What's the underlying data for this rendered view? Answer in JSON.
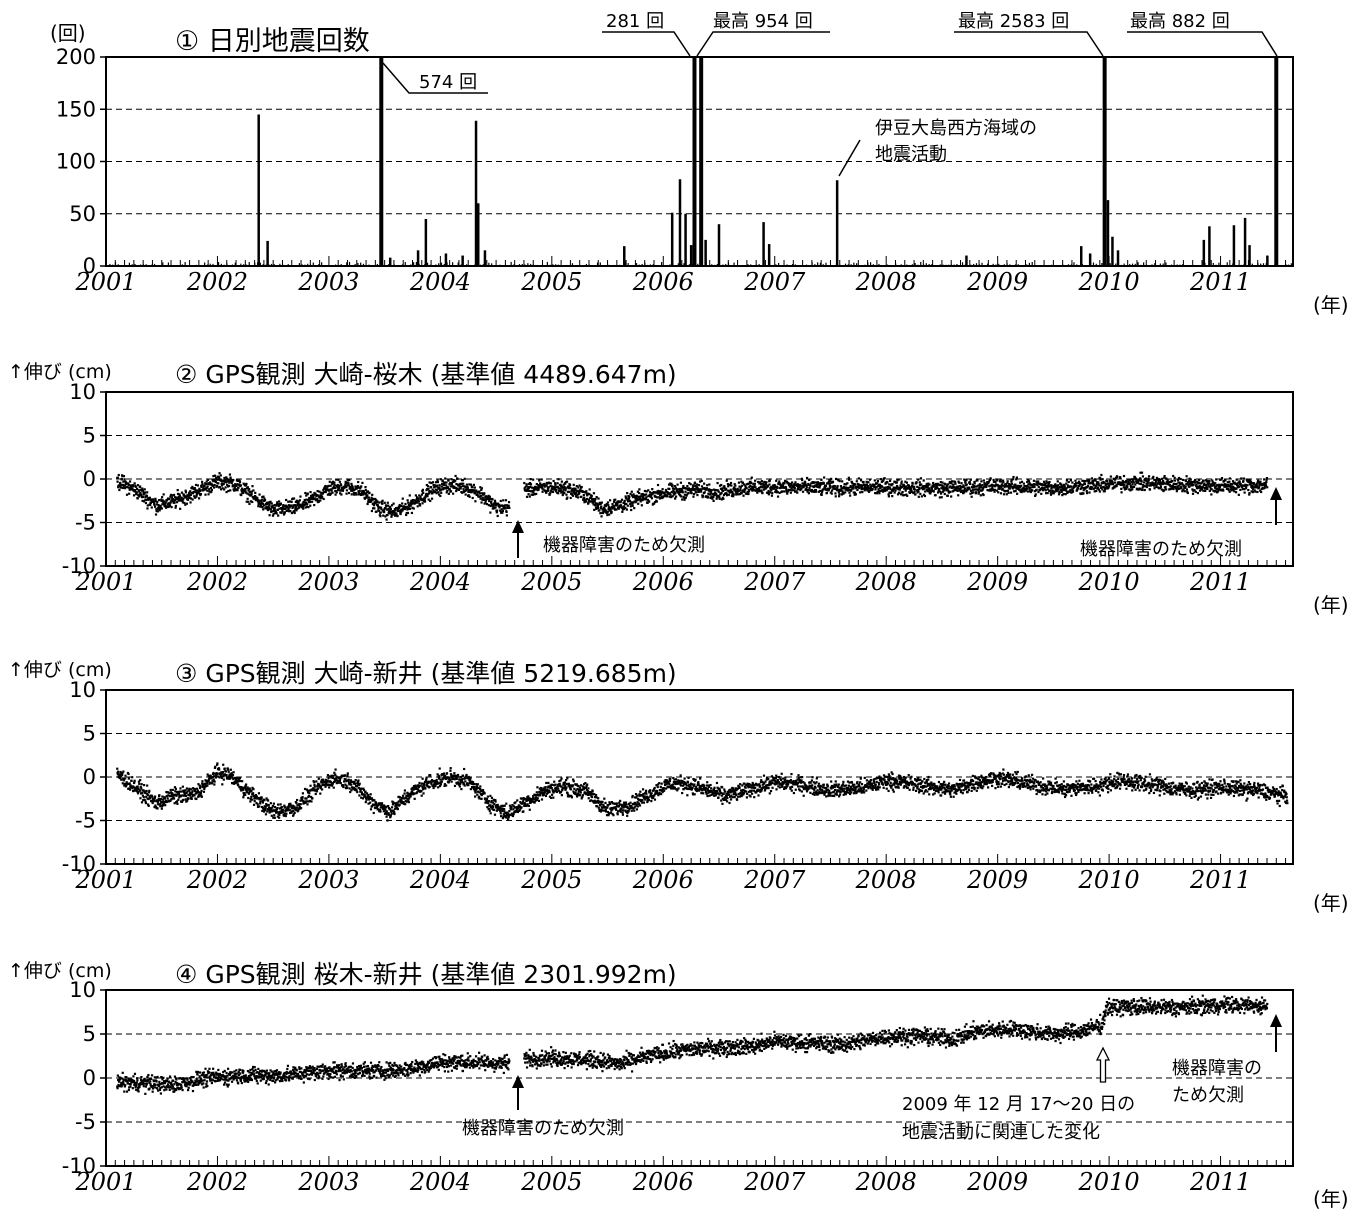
{
  "figure": {
    "year_unit_label": "(年)",
    "years": [
      "2001",
      "2002",
      "2003",
      "2004",
      "2005",
      "2006",
      "2007",
      "2008",
      "2009",
      "2010",
      "2011"
    ],
    "bar_color": "#000000",
    "grid_color": "#000000"
  },
  "chart_data": [
    {
      "type": "bar",
      "title": "① 日別地震回数",
      "ylabel": "(回)",
      "xlabel": "(年)",
      "ylim": [
        0,
        200
      ],
      "yticks": [
        0,
        50,
        100,
        150,
        200
      ],
      "grid": "dashed horizontal",
      "x_range_years": [
        2001.0,
        2011.65
      ],
      "spikes": [
        {
          "x": 2002.37,
          "y": 145
        },
        {
          "x": 2002.45,
          "y": 24
        },
        {
          "x": 2003.47,
          "y": 574
        },
        {
          "x": 2003.55,
          "y": 8
        },
        {
          "x": 2003.8,
          "y": 15
        },
        {
          "x": 2003.87,
          "y": 45
        },
        {
          "x": 2004.05,
          "y": 12
        },
        {
          "x": 2004.2,
          "y": 10
        },
        {
          "x": 2004.32,
          "y": 139
        },
        {
          "x": 2004.34,
          "y": 60
        },
        {
          "x": 2004.4,
          "y": 15
        },
        {
          "x": 2005.65,
          "y": 19
        },
        {
          "x": 2006.08,
          "y": 51
        },
        {
          "x": 2006.15,
          "y": 83
        },
        {
          "x": 2006.2,
          "y": 50
        },
        {
          "x": 2006.25,
          "y": 20
        },
        {
          "x": 2006.28,
          "y": 281
        },
        {
          "x": 2006.34,
          "y": 954
        },
        {
          "x": 2006.38,
          "y": 25
        },
        {
          "x": 2006.5,
          "y": 40
        },
        {
          "x": 2006.9,
          "y": 42
        },
        {
          "x": 2006.95,
          "y": 21
        },
        {
          "x": 2007.56,
          "y": 82
        },
        {
          "x": 2008.72,
          "y": 10
        },
        {
          "x": 2009.75,
          "y": 19
        },
        {
          "x": 2009.83,
          "y": 12
        },
        {
          "x": 2009.96,
          "y": 2583
        },
        {
          "x": 2009.99,
          "y": 63
        },
        {
          "x": 2010.03,
          "y": 28
        },
        {
          "x": 2010.08,
          "y": 15
        },
        {
          "x": 2010.85,
          "y": 25
        },
        {
          "x": 2010.9,
          "y": 38
        },
        {
          "x": 2011.12,
          "y": 39
        },
        {
          "x": 2011.22,
          "y": 46
        },
        {
          "x": 2011.26,
          "y": 20
        },
        {
          "x": 2011.42,
          "y": 10
        },
        {
          "x": 2011.5,
          "y": 882
        }
      ],
      "annotations": [
        {
          "text": "574 回",
          "x": 2003.47
        },
        {
          "text": "281 回",
          "x": 2006.28
        },
        {
          "text": "最高 954 回",
          "x": 2006.34
        },
        {
          "text": "最高 2583 回",
          "x": 2009.96
        },
        {
          "text": "最高 882 回",
          "x": 2011.5
        },
        {
          "text": "伊豆大島西方海域の",
          "x": 2007.56
        },
        {
          "text": "地震活動",
          "x": 2007.56
        }
      ]
    },
    {
      "type": "scatter",
      "title": "② GPS観測 大崎-桜木 (基準値 4489.647m)",
      "ylabel": "↑伸び (cm)",
      "xlabel": "(年)",
      "ylim": [
        -10,
        10
      ],
      "yticks": [
        -10,
        -5,
        0,
        5,
        10
      ],
      "grid": "dashed horizontal",
      "x_range_years": [
        2001.0,
        2011.65
      ],
      "gaps": [
        [
          2004.62,
          2004.75
        ],
        [
          2011.42,
          2011.65
        ]
      ],
      "trend": [
        [
          2001.1,
          -0.2
        ],
        [
          2001.3,
          -1.5
        ],
        [
          2001.45,
          -3.0
        ],
        [
          2001.6,
          -2.6
        ],
        [
          2001.8,
          -1.5
        ],
        [
          2002.0,
          -0.3
        ],
        [
          2002.15,
          -0.5
        ],
        [
          2002.35,
          -2.3
        ],
        [
          2002.5,
          -3.6
        ],
        [
          2002.7,
          -3.2
        ],
        [
          2002.85,
          -2.4
        ],
        [
          2003.0,
          -1.1
        ],
        [
          2003.15,
          -0.8
        ],
        [
          2003.3,
          -1.4
        ],
        [
          2003.45,
          -3.4
        ],
        [
          2003.6,
          -3.8
        ],
        [
          2003.75,
          -2.8
        ],
        [
          2003.9,
          -1.4
        ],
        [
          2004.05,
          -0.7
        ],
        [
          2004.2,
          -0.8
        ],
        [
          2004.35,
          -1.6
        ],
        [
          2004.5,
          -3.3
        ],
        [
          2004.62,
          -3.2
        ],
        [
          2004.75,
          -1.2
        ],
        [
          2004.9,
          -1.0
        ],
        [
          2005.1,
          -1.0
        ],
        [
          2005.3,
          -1.8
        ],
        [
          2005.45,
          -3.4
        ],
        [
          2005.6,
          -3.0
        ],
        [
          2005.8,
          -2.2
        ],
        [
          2006.0,
          -1.6
        ],
        [
          2006.3,
          -1.2
        ],
        [
          2006.5,
          -1.5
        ],
        [
          2006.7,
          -1.0
        ],
        [
          2007.0,
          -0.9
        ],
        [
          2007.5,
          -1.0
        ],
        [
          2008.0,
          -0.9
        ],
        [
          2008.5,
          -1.1
        ],
        [
          2009.0,
          -0.8
        ],
        [
          2009.5,
          -1.0
        ],
        [
          2009.9,
          -0.7
        ],
        [
          2010.2,
          -0.4
        ],
        [
          2010.6,
          -0.6
        ],
        [
          2011.0,
          -0.8
        ],
        [
          2011.42,
          -0.7
        ]
      ],
      "annotations": [
        {
          "text": "機器障害のため欠測",
          "x": 2004.68
        },
        {
          "text": "機器障害のため欠測",
          "x": 2011.55
        }
      ]
    },
    {
      "type": "scatter",
      "title": "③ GPS観測 大崎-新井 (基準値 5219.685m)",
      "ylabel": "↑伸び (cm)",
      "xlabel": "(年)",
      "ylim": [
        -10,
        10
      ],
      "yticks": [
        -10,
        -5,
        0,
        5,
        10
      ],
      "grid": "dashed horizontal",
      "x_range_years": [
        2001.0,
        2011.65
      ],
      "gaps": [],
      "trend": [
        [
          2001.1,
          0.4
        ],
        [
          2001.3,
          -1.5
        ],
        [
          2001.45,
          -3.0
        ],
        [
          2001.6,
          -2.2
        ],
        [
          2001.8,
          -2.0
        ],
        [
          2002.0,
          0.5
        ],
        [
          2002.1,
          0.3
        ],
        [
          2002.3,
          -2.0
        ],
        [
          2002.5,
          -4.0
        ],
        [
          2002.7,
          -3.5
        ],
        [
          2002.9,
          -1.2
        ],
        [
          2003.05,
          -0.1
        ],
        [
          2003.2,
          -0.6
        ],
        [
          2003.4,
          -3.0
        ],
        [
          2003.55,
          -4.0
        ],
        [
          2003.7,
          -2.2
        ],
        [
          2003.9,
          -0.6
        ],
        [
          2004.1,
          0.0
        ],
        [
          2004.25,
          -0.5
        ],
        [
          2004.45,
          -3.0
        ],
        [
          2004.6,
          -4.2
        ],
        [
          2004.75,
          -3.0
        ],
        [
          2004.95,
          -1.5
        ],
        [
          2005.1,
          -1.1
        ],
        [
          2005.3,
          -1.6
        ],
        [
          2005.5,
          -3.8
        ],
        [
          2005.7,
          -3.2
        ],
        [
          2005.9,
          -1.8
        ],
        [
          2006.05,
          -0.8
        ],
        [
          2006.2,
          -0.8
        ],
        [
          2006.4,
          -1.5
        ],
        [
          2006.55,
          -2.2
        ],
        [
          2006.8,
          -1.3
        ],
        [
          2007.0,
          -0.6
        ],
        [
          2007.2,
          -0.8
        ],
        [
          2007.5,
          -1.5
        ],
        [
          2007.8,
          -1.2
        ],
        [
          2008.0,
          -0.4
        ],
        [
          2008.3,
          -0.9
        ],
        [
          2008.6,
          -1.5
        ],
        [
          2008.8,
          -0.6
        ],
        [
          2009.0,
          -0.1
        ],
        [
          2009.3,
          -0.8
        ],
        [
          2009.6,
          -1.4
        ],
        [
          2009.9,
          -1.0
        ],
        [
          2010.1,
          -0.4
        ],
        [
          2010.4,
          -0.9
        ],
        [
          2010.7,
          -1.5
        ],
        [
          2011.0,
          -1.2
        ],
        [
          2011.3,
          -1.5
        ],
        [
          2011.6,
          -2.2
        ]
      ],
      "annotations": []
    },
    {
      "type": "scatter",
      "title": "④ GPS観測 桜木-新井 (基準値 2301.992m)",
      "ylabel": "↑伸び (cm)",
      "xlabel": "(年)",
      "ylim": [
        -10,
        10
      ],
      "yticks": [
        -10,
        -5,
        0,
        5,
        10
      ],
      "grid": "dashed horizontal",
      "x_range_years": [
        2001.0,
        2011.65
      ],
      "gaps": [
        [
          2004.62,
          2004.75
        ],
        [
          2011.42,
          2011.65
        ]
      ],
      "trend": [
        [
          2001.1,
          -0.5
        ],
        [
          2001.4,
          -0.6
        ],
        [
          2001.6,
          -0.8
        ],
        [
          2001.9,
          0.0
        ],
        [
          2002.2,
          0.3
        ],
        [
          2002.6,
          0.3
        ],
        [
          2003.0,
          0.9
        ],
        [
          2003.4,
          0.8
        ],
        [
          2003.7,
          1.0
        ],
        [
          2004.0,
          1.8
        ],
        [
          2004.3,
          1.8
        ],
        [
          2004.62,
          1.6
        ],
        [
          2004.75,
          2.2
        ],
        [
          2005.0,
          2.3
        ],
        [
          2005.4,
          2.0
        ],
        [
          2005.6,
          1.6
        ],
        [
          2005.9,
          2.6
        ],
        [
          2006.2,
          3.2
        ],
        [
          2006.5,
          3.5
        ],
        [
          2006.8,
          3.6
        ],
        [
          2007.0,
          4.2
        ],
        [
          2007.3,
          4.0
        ],
        [
          2007.6,
          3.8
        ],
        [
          2008.0,
          4.7
        ],
        [
          2008.3,
          4.8
        ],
        [
          2008.6,
          4.4
        ],
        [
          2008.8,
          5.3
        ],
        [
          2009.1,
          5.6
        ],
        [
          2009.5,
          5.0
        ],
        [
          2009.75,
          5.3
        ],
        [
          2009.94,
          6.1
        ],
        [
          2009.97,
          8.0
        ],
        [
          2010.2,
          8.1
        ],
        [
          2010.6,
          8.0
        ],
        [
          2011.0,
          8.3
        ],
        [
          2011.42,
          8.2
        ]
      ],
      "annotations": [
        {
          "text": "機器障害のため欠測",
          "x": 2004.68
        },
        {
          "text": "2009 年 12 月 17～20 日の",
          "x": 2009.96
        },
        {
          "text": "地震活動に関連した変化",
          "x": 2009.96
        },
        {
          "text": "機器障害の",
          "x": 2011.55
        },
        {
          "text": "ため欠測",
          "x": 2011.55
        }
      ]
    }
  ]
}
